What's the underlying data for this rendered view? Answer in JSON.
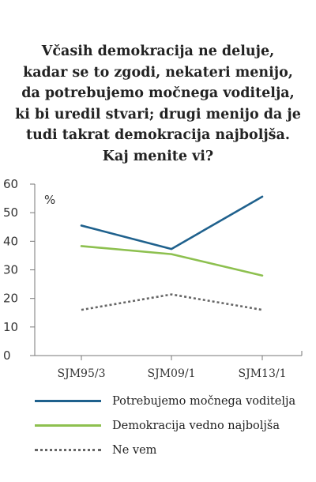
{
  "chart_data": {
    "type": "line",
    "title_lines": [
      "Včasih demokracija ne deluje,",
      "kadar se to zgodi, nekateri menijo,",
      "da potrebujemo močnega voditelja,",
      "ki bi uredil stvari; drugi menijo da je",
      "tudi takrat demokracija najboljša.",
      "Kaj menite vi?"
    ],
    "unit_label": "%",
    "categories": [
      "SJM95/3",
      "SJM09/1",
      "SJM13/1"
    ],
    "ylim": [
      0,
      60
    ],
    "yticks": [
      "0",
      "10",
      "20",
      "30",
      "40",
      "50",
      "60"
    ],
    "grid": false,
    "legend_position": "bottom",
    "series": [
      {
        "name": "Potrebujemo močnega voditelja",
        "values": [
          45.5,
          37.3,
          55.6
        ],
        "color": "#1f618d",
        "dash": "solid"
      },
      {
        "name": "Demokracija vedno najboljša",
        "values": [
          38.3,
          35.5,
          28.0
        ],
        "color": "#8dc04f",
        "dash": "solid"
      },
      {
        "name": "Ne vem",
        "values": [
          16.0,
          21.4,
          16.0
        ],
        "color": "#666666",
        "dash": "dotted"
      }
    ]
  }
}
